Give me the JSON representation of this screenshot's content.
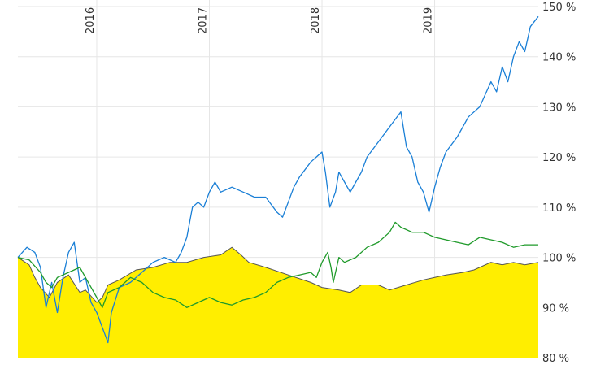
{
  "chart_data": {
    "type": "line",
    "title": "",
    "xlabel": "",
    "ylabel": "",
    "x_ticks": [
      "2016",
      "2017",
      "2018",
      "2019"
    ],
    "y_ticks": [
      "80 %",
      "90 %",
      "100 %",
      "110 %",
      "120 %",
      "130 %",
      "140 %",
      "150 %"
    ],
    "ylim": [
      80,
      150
    ],
    "xlim": [
      2015.3,
      2019.92
    ],
    "grid": true,
    "legend": "none",
    "y_axis_side": "right",
    "series": [
      {
        "style": "area",
        "color": "#ffee00",
        "line_color": "#555555",
        "points": [
          [
            2015.3,
            100
          ],
          [
            2015.4,
            98.5
          ],
          [
            2015.45,
            96
          ],
          [
            2015.5,
            94
          ],
          [
            2015.58,
            92
          ],
          [
            2015.65,
            95
          ],
          [
            2015.75,
            96.5
          ],
          [
            2015.85,
            93
          ],
          [
            2015.9,
            93.5
          ],
          [
            2016.0,
            91
          ],
          [
            2016.05,
            92
          ],
          [
            2016.1,
            94.5
          ],
          [
            2016.2,
            95.5
          ],
          [
            2016.35,
            97.5
          ],
          [
            2016.5,
            98
          ],
          [
            2016.65,
            99
          ],
          [
            2016.8,
            99
          ],
          [
            2016.95,
            100
          ],
          [
            2017.1,
            100.5
          ],
          [
            2017.2,
            102
          ],
          [
            2017.28,
            100.5
          ],
          [
            2017.35,
            99
          ],
          [
            2017.5,
            98
          ],
          [
            2017.7,
            96.5
          ],
          [
            2017.9,
            95
          ],
          [
            2018.0,
            94
          ],
          [
            2018.15,
            93.5
          ],
          [
            2018.25,
            93
          ],
          [
            2018.35,
            94.5
          ],
          [
            2018.5,
            94.5
          ],
          [
            2018.6,
            93.5
          ],
          [
            2018.75,
            94.5
          ],
          [
            2018.9,
            95.5
          ],
          [
            2019.0,
            96
          ],
          [
            2019.1,
            96.5
          ],
          [
            2019.25,
            97
          ],
          [
            2019.35,
            97.5
          ],
          [
            2019.5,
            99
          ],
          [
            2019.6,
            98.5
          ],
          [
            2019.7,
            99
          ],
          [
            2019.8,
            98.5
          ],
          [
            2019.92,
            99
          ]
        ]
      },
      {
        "style": "line",
        "color": "#1a7fd6",
        "points": [
          [
            2015.3,
            100
          ],
          [
            2015.38,
            102
          ],
          [
            2015.45,
            101
          ],
          [
            2015.5,
            98
          ],
          [
            2015.55,
            90
          ],
          [
            2015.6,
            95
          ],
          [
            2015.65,
            89
          ],
          [
            2015.7,
            96
          ],
          [
            2015.75,
            101
          ],
          [
            2015.8,
            103
          ],
          [
            2015.85,
            95
          ],
          [
            2015.9,
            96
          ],
          [
            2015.95,
            91
          ],
          [
            2016.0,
            89
          ],
          [
            2016.05,
            86
          ],
          [
            2016.1,
            83
          ],
          [
            2016.13,
            89
          ],
          [
            2016.2,
            94
          ],
          [
            2016.3,
            95
          ],
          [
            2016.4,
            97
          ],
          [
            2016.5,
            99
          ],
          [
            2016.6,
            100
          ],
          [
            2016.7,
            99
          ],
          [
            2016.75,
            101
          ],
          [
            2016.8,
            104
          ],
          [
            2016.85,
            110
          ],
          [
            2016.9,
            111
          ],
          [
            2016.95,
            110
          ],
          [
            2017.0,
            113
          ],
          [
            2017.05,
            115
          ],
          [
            2017.1,
            113
          ],
          [
            2017.2,
            114
          ],
          [
            2017.3,
            113
          ],
          [
            2017.4,
            112
          ],
          [
            2017.5,
            112
          ],
          [
            2017.6,
            109
          ],
          [
            2017.65,
            108
          ],
          [
            2017.7,
            111
          ],
          [
            2017.75,
            114
          ],
          [
            2017.8,
            116
          ],
          [
            2017.9,
            119
          ],
          [
            2017.95,
            120
          ],
          [
            2018.0,
            121
          ],
          [
            2018.03,
            117
          ],
          [
            2018.07,
            110
          ],
          [
            2018.12,
            113
          ],
          [
            2018.15,
            117
          ],
          [
            2018.2,
            115
          ],
          [
            2018.25,
            113
          ],
          [
            2018.3,
            115
          ],
          [
            2018.35,
            117
          ],
          [
            2018.4,
            120
          ],
          [
            2018.5,
            123
          ],
          [
            2018.6,
            126
          ],
          [
            2018.7,
            129
          ],
          [
            2018.75,
            122
          ],
          [
            2018.8,
            120
          ],
          [
            2018.85,
            115
          ],
          [
            2018.9,
            113
          ],
          [
            2018.95,
            109
          ],
          [
            2019.0,
            114
          ],
          [
            2019.05,
            118
          ],
          [
            2019.1,
            121
          ],
          [
            2019.2,
            124
          ],
          [
            2019.3,
            128
          ],
          [
            2019.4,
            130
          ],
          [
            2019.5,
            135
          ],
          [
            2019.55,
            133
          ],
          [
            2019.6,
            138
          ],
          [
            2019.65,
            135
          ],
          [
            2019.7,
            140
          ],
          [
            2019.75,
            143
          ],
          [
            2019.8,
            141
          ],
          [
            2019.85,
            146
          ],
          [
            2019.92,
            148
          ]
        ]
      },
      {
        "style": "line",
        "color": "#1f9a2a",
        "points": [
          [
            2015.3,
            100
          ],
          [
            2015.4,
            99.5
          ],
          [
            2015.5,
            97
          ],
          [
            2015.55,
            95
          ],
          [
            2015.6,
            94
          ],
          [
            2015.65,
            96
          ],
          [
            2015.75,
            97
          ],
          [
            2015.85,
            98
          ],
          [
            2015.9,
            96
          ],
          [
            2016.0,
            92
          ],
          [
            2016.05,
            90
          ],
          [
            2016.1,
            93
          ],
          [
            2016.2,
            94
          ],
          [
            2016.3,
            96
          ],
          [
            2016.4,
            95
          ],
          [
            2016.5,
            93
          ],
          [
            2016.6,
            92
          ],
          [
            2016.7,
            91.5
          ],
          [
            2016.8,
            90
          ],
          [
            2016.9,
            91
          ],
          [
            2017.0,
            92
          ],
          [
            2017.1,
            91
          ],
          [
            2017.2,
            90.5
          ],
          [
            2017.3,
            91.5
          ],
          [
            2017.4,
            92
          ],
          [
            2017.5,
            93
          ],
          [
            2017.6,
            95
          ],
          [
            2017.7,
            96
          ],
          [
            2017.8,
            96.5
          ],
          [
            2017.9,
            97
          ],
          [
            2017.95,
            96
          ],
          [
            2018.0,
            99
          ],
          [
            2018.05,
            101
          ],
          [
            2018.08,
            98
          ],
          [
            2018.1,
            95
          ],
          [
            2018.15,
            100
          ],
          [
            2018.2,
            99
          ],
          [
            2018.3,
            100
          ],
          [
            2018.4,
            102
          ],
          [
            2018.5,
            103
          ],
          [
            2018.6,
            105
          ],
          [
            2018.65,
            107
          ],
          [
            2018.7,
            106
          ],
          [
            2018.8,
            105
          ],
          [
            2018.9,
            105
          ],
          [
            2019.0,
            104
          ],
          [
            2019.1,
            103.5
          ],
          [
            2019.2,
            103
          ],
          [
            2019.3,
            102.5
          ],
          [
            2019.4,
            104
          ],
          [
            2019.5,
            103.5
          ],
          [
            2019.6,
            103
          ],
          [
            2019.7,
            102
          ],
          [
            2019.8,
            102.5
          ],
          [
            2019.92,
            102.5
          ]
        ]
      }
    ]
  }
}
